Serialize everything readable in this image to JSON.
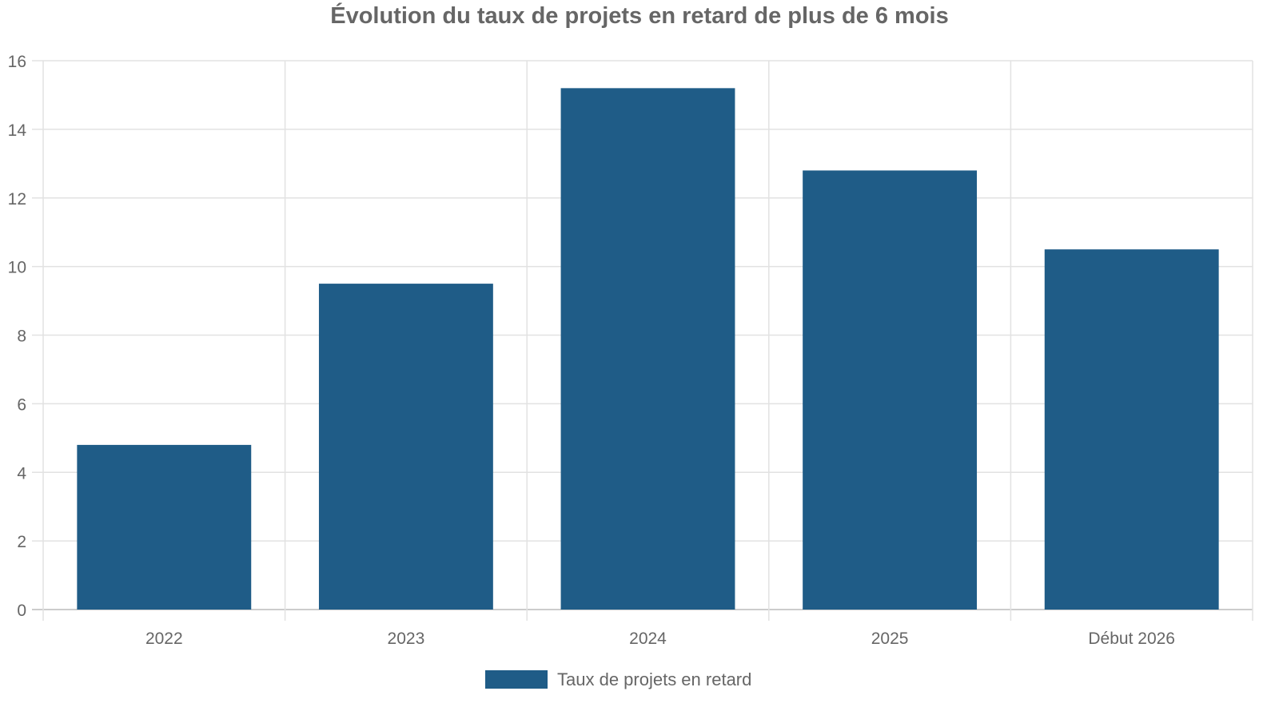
{
  "chart_data": {
    "type": "bar",
    "title": "Évolution du taux de projets en retard de plus de 6 mois",
    "categories": [
      "2022",
      "2023",
      "2024",
      "2025",
      "Début 2026"
    ],
    "series": [
      {
        "name": "Taux de projets en retard",
        "values": [
          4.8,
          9.5,
          15.2,
          12.8,
          10.5
        ],
        "color": "#1f5c87"
      }
    ],
    "ylim": [
      0,
      16
    ],
    "yticks": [
      "0",
      "2",
      "4",
      "6",
      "8",
      "10",
      "12",
      "14",
      "16"
    ],
    "grid": true,
    "legend_position": "bottom"
  }
}
